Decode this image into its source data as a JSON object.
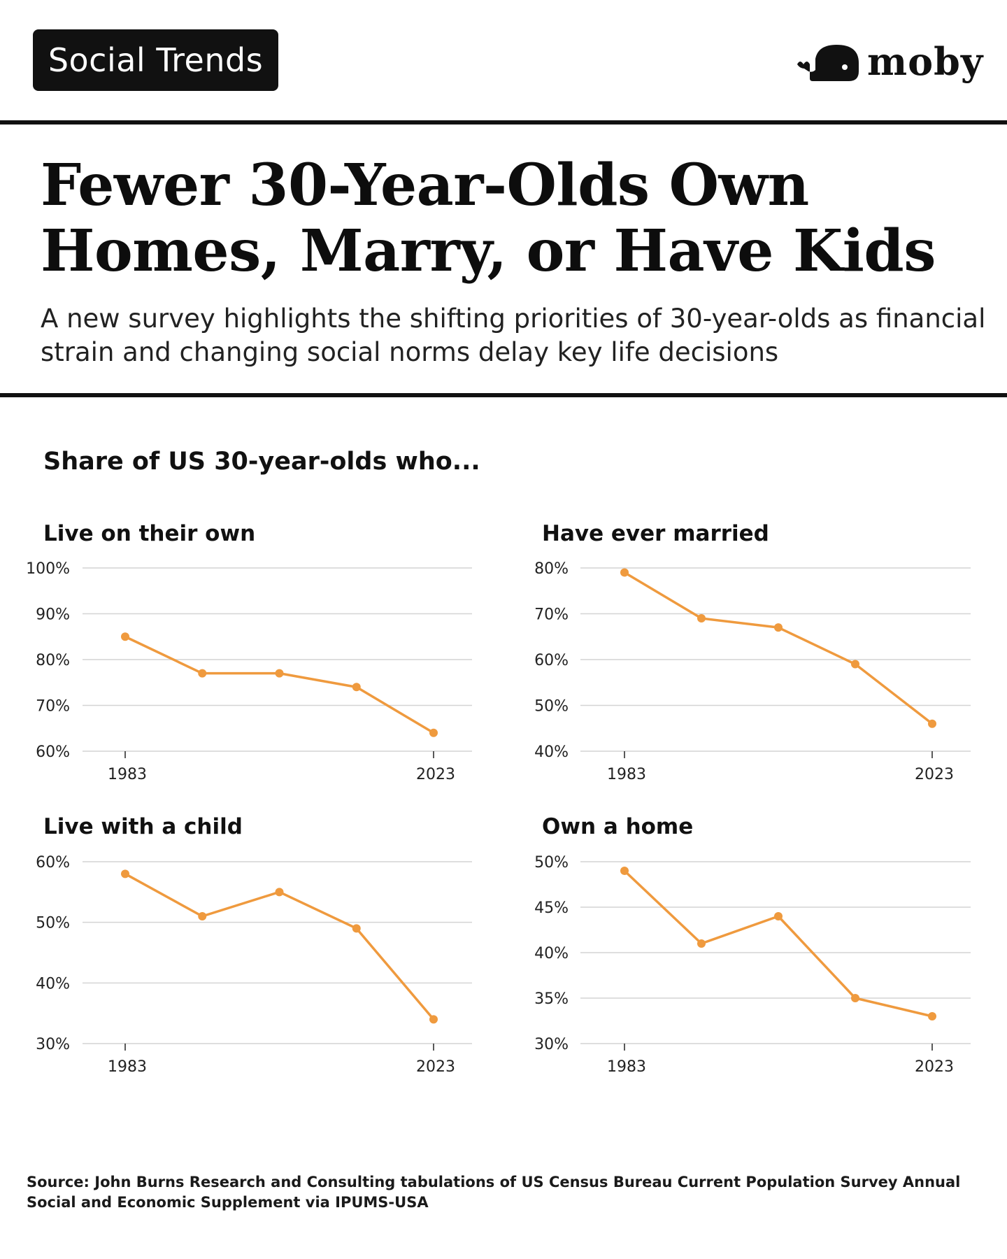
{
  "header": {
    "badge_label": "Social Trends",
    "brand_name": "moby"
  },
  "headline": {
    "title": "Fewer 30-Year-Olds Own Homes, Marry, or Have Kids",
    "subtitle": "A new survey highlights the shifting priorities of 30-year-olds as financial strain and changing social norms delay key life decisions"
  },
  "section_title": "Share of US 30-year-olds who...",
  "colors": {
    "line": "#ef9a3e",
    "grid": "#d4d4d4",
    "text": "#111111",
    "tick": "#222222"
  },
  "chart_data": [
    {
      "type": "line",
      "title": "Live on their own",
      "x": [
        1983,
        1993,
        2003,
        2013,
        2023
      ],
      "x_tick_labels": [
        "1983",
        "2023"
      ],
      "values": [
        85,
        77,
        77,
        74,
        64
      ],
      "y_ticks": [
        60,
        70,
        80,
        90,
        100
      ],
      "y_tick_labels": [
        "60%",
        "70%",
        "80%",
        "90%",
        "100%"
      ],
      "ylim": [
        60,
        100
      ],
      "unit": "%",
      "grid": true
    },
    {
      "type": "line",
      "title": "Have ever married",
      "x": [
        1983,
        1993,
        2003,
        2013,
        2023
      ],
      "x_tick_labels": [
        "1983",
        "2023"
      ],
      "values": [
        79,
        69,
        67,
        59,
        46
      ],
      "y_ticks": [
        40,
        50,
        60,
        70,
        80
      ],
      "y_tick_labels": [
        "40%",
        "50%",
        "60%",
        "70%",
        "80%"
      ],
      "ylim": [
        40,
        80
      ],
      "unit": "%",
      "grid": true
    },
    {
      "type": "line",
      "title": "Live with a child",
      "x": [
        1983,
        1993,
        2003,
        2013,
        2023
      ],
      "x_tick_labels": [
        "1983",
        "2023"
      ],
      "values": [
        58,
        51,
        55,
        49,
        34
      ],
      "y_ticks": [
        30,
        40,
        50,
        60
      ],
      "y_tick_labels": [
        "30%",
        "40%",
        "50%",
        "60%"
      ],
      "ylim": [
        30,
        60
      ],
      "unit": "%",
      "grid": true
    },
    {
      "type": "line",
      "title": "Own a home",
      "x": [
        1983,
        1993,
        2003,
        2013,
        2023
      ],
      "x_tick_labels": [
        "1983",
        "2023"
      ],
      "values": [
        49,
        41,
        44,
        35,
        33
      ],
      "y_ticks": [
        30,
        35,
        40,
        45,
        50
      ],
      "y_tick_labels": [
        "30%",
        "35%",
        "40%",
        "45%",
        "50%"
      ],
      "ylim": [
        30,
        50
      ],
      "unit": "%",
      "grid": true
    }
  ],
  "footer": {
    "source": "Source: John Burns Research and Consulting tabulations of US Census Bureau Current Population Survey Annual Social and Economic Supplement via IPUMS-USA"
  }
}
